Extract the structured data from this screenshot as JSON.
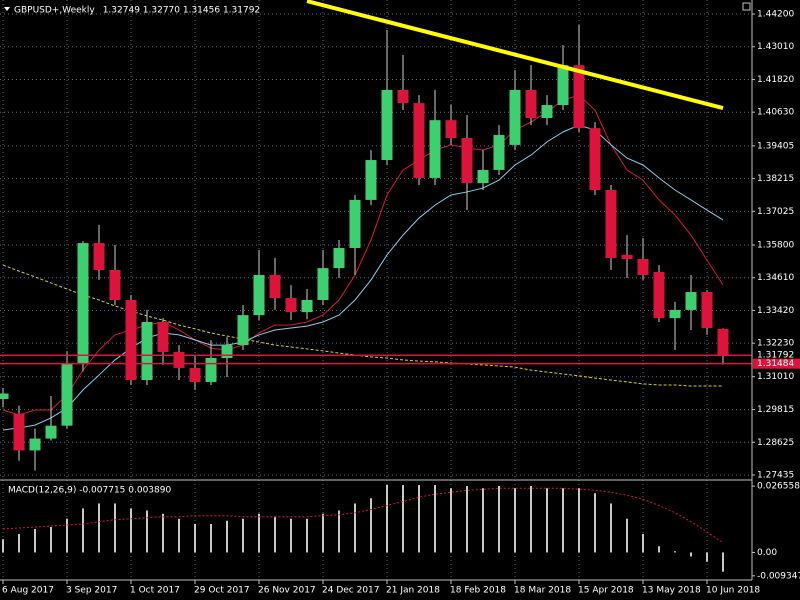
{
  "chart_data": [
    {
      "type": "candlestick",
      "title": "GBPUSD+,Weekly",
      "subtitle": "1.32749 1.32770 1.31456 1.31792",
      "categories": [
        "6 Aug 2017",
        null,
        null,
        null,
        "3 Sep 2017",
        null,
        null,
        null,
        "1 Oct 2017",
        null,
        null,
        null,
        "29 Oct 2017",
        null,
        null,
        null,
        "26 Nov 2017",
        null,
        null,
        null,
        "24 Dec 2017",
        null,
        null,
        null,
        "21 Jan 2018",
        null,
        null,
        null,
        "18 Feb 2018",
        null,
        null,
        null,
        "18 Mar 2018",
        null,
        null,
        null,
        "15 Apr 2018",
        null,
        null,
        null,
        "13 May 2018",
        null,
        null,
        null,
        "10 Jun 2018",
        null
      ],
      "open": [
        1.302,
        1.2967,
        1.2833,
        1.2876,
        1.2923,
        1.3149,
        1.3587,
        1.3489,
        1.338,
        1.3089,
        1.33,
        1.3191,
        1.3133,
        1.3082,
        1.3169,
        1.3216,
        1.3325,
        1.3471,
        1.3387,
        1.3336,
        1.338,
        1.3496,
        1.3569,
        1.3744,
        1.3889,
        1.4144,
        1.4096,
        1.3824,
        1.4034,
        1.3969,
        1.3805,
        1.3853,
        1.3944,
        1.4144,
        1.4042,
        1.4089,
        1.4234,
        1.4005,
        1.378,
        1.3544,
        1.3529,
        1.3482,
        1.3314,
        1.3344,
        1.3409,
        1.32749
      ],
      "high": [
        1.306,
        1.2996,
        1.2912,
        1.3031,
        1.3194,
        1.3594,
        1.3653,
        1.358,
        1.3398,
        1.3344,
        1.3314,
        1.3216,
        1.318,
        1.3234,
        1.3245,
        1.3362,
        1.3562,
        1.3533,
        1.3434,
        1.342,
        1.3562,
        1.3598,
        1.3762,
        1.3925,
        1.4362,
        1.4271,
        1.4125,
        1.4144,
        1.4089,
        1.4053,
        1.3925,
        1.4016,
        1.4216,
        1.4234,
        1.4125,
        1.4307,
        1.438,
        1.4027,
        1.3798,
        1.3616,
        1.3605,
        1.3507,
        1.3373,
        1.3471,
        1.3416,
        1.3277
      ],
      "low": [
        1.299,
        1.2796,
        1.276,
        1.2869,
        1.2912,
        1.312,
        1.3453,
        1.3362,
        1.3071,
        1.3071,
        1.3144,
        1.3089,
        1.3053,
        1.3071,
        1.31,
        1.3198,
        1.3307,
        1.3344,
        1.3307,
        1.331,
        1.3362,
        1.346,
        1.3471,
        1.3725,
        1.3871,
        1.4071,
        1.3798,
        1.3798,
        1.3944,
        1.3707,
        1.378,
        1.3835,
        1.3925,
        1.4016,
        1.4016,
        1.4071,
        1.3991,
        1.3762,
        1.3489,
        1.346,
        1.3453,
        1.33,
        1.3198,
        1.3271,
        1.3253,
        1.31456
      ],
      "close": [
        1.304,
        1.2833,
        1.2876,
        1.2923,
        1.3149,
        1.3587,
        1.3489,
        1.338,
        1.3089,
        1.33,
        1.3191,
        1.3133,
        1.3082,
        1.3169,
        1.3216,
        1.3325,
        1.3471,
        1.3387,
        1.3336,
        1.338,
        1.3496,
        1.3569,
        1.3744,
        1.3889,
        1.4144,
        1.4096,
        1.3824,
        1.4034,
        1.3969,
        1.3805,
        1.3853,
        1.398,
        1.4144,
        1.4042,
        1.4089,
        1.4234,
        1.4005,
        1.378,
        1.3533,
        1.3529,
        1.3471,
        1.3314,
        1.3344,
        1.3409,
        1.3278,
        1.31792
      ],
      "up_color": "#3ecf6e",
      "down_color": "#dc143c",
      "wick_color": "#d0d0d0",
      "series": [
        {
          "color": "#dc143c",
          "style": "solid",
          "values": [
            1.298,
            1.2962,
            1.298,
            1.298,
            1.3035,
            1.3125,
            1.3198,
            1.3253,
            1.3271,
            1.3289,
            1.33,
            1.3271,
            1.3235,
            1.3205,
            1.3198,
            1.3216,
            1.326,
            1.3289,
            1.3289,
            1.33,
            1.3325,
            1.338,
            1.3471,
            1.3598,
            1.3762,
            1.3853,
            1.3889,
            1.3925,
            1.3944,
            1.3933,
            1.3925,
            1.3944,
            1.3998,
            1.4027,
            1.4064,
            1.4107,
            1.4125,
            1.4071,
            1.3944,
            1.3853,
            1.3816,
            1.3744,
            1.3689,
            1.3616,
            1.3525,
            1.3435
          ]
        },
        {
          "color": "#87ceeb",
          "style": "solid",
          "values": [
            1.2907,
            1.2915,
            1.2925,
            1.2951,
            1.2987,
            1.3053,
            1.3107,
            1.3162,
            1.3205,
            1.3242,
            1.326,
            1.3253,
            1.3235,
            1.3216,
            1.3216,
            1.3227,
            1.3253,
            1.3271,
            1.3278,
            1.3285,
            1.33,
            1.3325,
            1.338,
            1.3453,
            1.3544,
            1.3616,
            1.3678,
            1.3725,
            1.3762,
            1.3773,
            1.3787,
            1.3816,
            1.3871,
            1.3907,
            1.3955,
            1.3991,
            1.4016,
            1.3998,
            1.3944,
            1.3896,
            1.3871,
            1.3824,
            1.378,
            1.3744,
            1.3707,
            1.3671
          ]
        },
        {
          "color": "#d8d800",
          "style": "dashed",
          "values": [
            1.3507,
            1.3485,
            1.3464,
            1.3442,
            1.342,
            1.3398,
            1.338,
            1.3358,
            1.334,
            1.3322,
            1.3307,
            1.3289,
            1.3275,
            1.326,
            1.3249,
            1.3238,
            1.3227,
            1.3216,
            1.3209,
            1.3202,
            1.3195,
            1.3187,
            1.318,
            1.3173,
            1.3169,
            1.3162,
            1.3158,
            1.3155,
            1.3151,
            1.3147,
            1.3144,
            1.314,
            1.3136,
            1.3125,
            1.3118,
            1.3111,
            1.3104,
            1.3096,
            1.3089,
            1.3082,
            1.3075,
            1.3071,
            1.3071,
            1.3067,
            1.3067,
            1.3067
          ]
        }
      ],
      "trendline": {
        "x": [
          19,
          45
        ],
        "values": [
          1.4467,
          1.4078
        ],
        "color": "#ffff00"
      },
      "hlines": [
        {
          "value": 1.31792,
          "color": "#dc143c",
          "label_fill": "#000000"
        },
        {
          "value": 1.31484,
          "color": "#dc143c",
          "label_fill": "#dc143c"
        }
      ],
      "ylim": [
        1.2729,
        1.4471
      ],
      "yticks": [
        {
          "value": 1.442,
          "label": "1.44200"
        },
        {
          "value": 1.4301,
          "label": "1.43010"
        },
        {
          "value": 1.4182,
          "label": "1.41820"
        },
        {
          "value": 1.4063,
          "label": "1.40630"
        },
        1.39405,
        {
          "value": 1.38215,
          "label": "1.38215"
        },
        {
          "value": 1.37025,
          "label": "1.37025"
        },
        {
          "value": 1.358,
          "label": "1.35800"
        },
        {
          "value": 1.3461,
          "label": "1.34610"
        },
        {
          "value": 1.3342,
          "label": "1.33420"
        },
        {
          "value": 1.3223,
          "label": "1.32230"
        },
        {
          "value": 1.3101,
          "label": "1.31010"
        },
        1.29815,
        1.28625,
        1.27435
      ],
      "grid": true
    },
    {
      "type": "bar",
      "title": "MACD(12,26,9) -0.007715 0.003890",
      "color": "#c8c8c8",
      "values": [
        0.0053,
        0.0074,
        0.0094,
        0.0102,
        0.0135,
        0.0176,
        0.0196,
        0.0196,
        0.0176,
        0.0168,
        0.0155,
        0.0135,
        0.0114,
        0.0114,
        0.0127,
        0.0135,
        0.0155,
        0.0143,
        0.0135,
        0.0135,
        0.0155,
        0.0168,
        0.0196,
        0.0217,
        0.027,
        0.027,
        0.027,
        0.027,
        0.0257,
        0.0266,
        0.0257,
        0.0266,
        0.0257,
        0.0266,
        0.0257,
        0.0257,
        0.0257,
        0.0237,
        0.0196,
        0.0135,
        0.0074,
        0.0025,
        0.0005,
        -0.0016,
        -0.0037,
        -0.007715
      ],
      "series": [
        {
          "color": "#dc143c",
          "style": "dotted",
          "values": [
            0.0094,
            0.0098,
            0.0102,
            0.0106,
            0.011,
            0.0114,
            0.0123,
            0.0131,
            0.0135,
            0.0139,
            0.0143,
            0.0143,
            0.0147,
            0.0147,
            0.0147,
            0.0143,
            0.0143,
            0.0143,
            0.0143,
            0.0143,
            0.0147,
            0.0151,
            0.0159,
            0.0172,
            0.0188,
            0.0204,
            0.0221,
            0.0233,
            0.0241,
            0.0249,
            0.0253,
            0.0257,
            0.0257,
            0.0257,
            0.0257,
            0.0257,
            0.0253,
            0.0249,
            0.0241,
            0.0229,
            0.0213,
            0.0188,
            0.0159,
            0.0123,
            0.0082,
            0.00389
          ]
        }
      ],
      "ylim": [
        -0.01022,
        0.0286
      ],
      "yticks": [
        0.026558,
        {
          "value": 0,
          "label": "0.00"
        },
        -0.009347
      ],
      "grid": true
    }
  ]
}
